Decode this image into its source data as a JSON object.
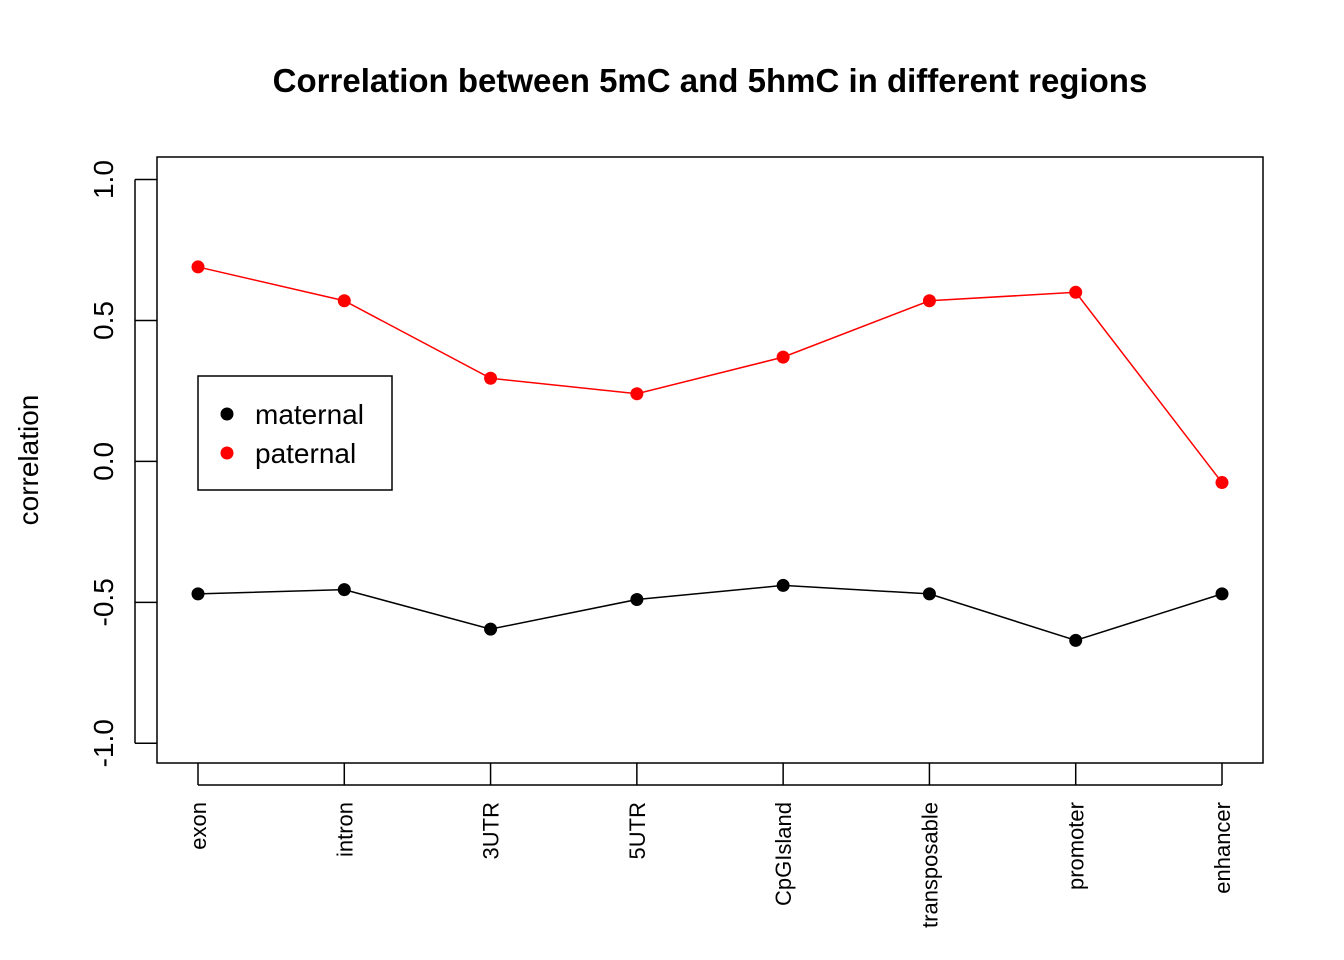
{
  "chart_data": {
    "type": "line",
    "title": "Correlation between 5mC and 5hmC  in different regions",
    "xlabel": "",
    "ylabel": "correlation",
    "categories": [
      "exon",
      "intron",
      "3UTR",
      "5UTR",
      "CpGIsland",
      "transposable",
      "promoter",
      "enhancer"
    ],
    "ylim": [
      -1.07,
      1.08
    ],
    "yticks": [
      -1.0,
      -0.5,
      0.0,
      0.5,
      1.0
    ],
    "ytick_labels": [
      "-1.0",
      "-0.5",
      "0.0",
      "0.5",
      "1.0"
    ],
    "grid": false,
    "legend_position": "left",
    "series": [
      {
        "name": "maternal",
        "color": "#000000",
        "values": [
          -0.47,
          -0.455,
          -0.595,
          -0.49,
          -0.44,
          -0.47,
          -0.635,
          -0.47
        ]
      },
      {
        "name": "paternal",
        "color": "#ff0000",
        "values": [
          0.69,
          0.57,
          0.295,
          0.24,
          0.37,
          0.57,
          0.6,
          -0.075
        ]
      }
    ]
  }
}
